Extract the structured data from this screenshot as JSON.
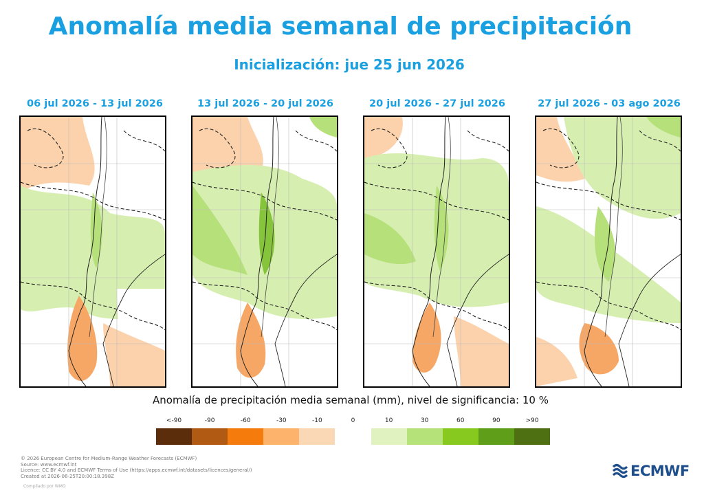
{
  "title": "Anomalía media semanal de precipitación",
  "subtitle": "Inicialización: jue 25 jun 2026",
  "panels": [
    {
      "period": "06 jul 2026 - 13 jul 2026"
    },
    {
      "period": "13 jul 2026 - 20 jul 2026"
    },
    {
      "period": "20 jul 2026 - 27 jul 2026"
    },
    {
      "period": "27 jul 2026 - 03 ago 2026"
    }
  ],
  "legend": {
    "title": "Anomalía de precipitación media semanal (mm), nivel de significancia: 10 %",
    "ticks": [
      "<-90",
      "-90",
      "-60",
      "-30",
      "-10",
      "0",
      "10",
      "30",
      "60",
      "90",
      ">90"
    ],
    "colors": [
      "#5c2d0b",
      "#b05a14",
      "#f57c0c",
      "#fdb36b",
      "#fbd8b5",
      "#ffffff",
      "#dff2bf",
      "#b5e37a",
      "#88c91f",
      "#5f9e18",
      "#4e6f12"
    ]
  },
  "colors": {
    "accent": "#1aa0e0",
    "dry_light": "#fbd2ab",
    "dry_medium": "#f6a766",
    "wet_light": "#d6efb0",
    "wet_medium": "#b6e07a",
    "wet_strong": "#86c43c"
  },
  "footer": [
    "© 2026 European Centre for Medium-Range Weather Forecasts (ECMWF)",
    "Source: www.ecmwf.int",
    "Licence: CC BY 4.0 and ECMWF Terms of Use (https://apps.ecmwf.int/datasets/licences/general/)",
    "Created at 2026-06-25T20:00:18.398Z"
  ],
  "footer_note": "Compilado por WMO",
  "logo": {
    "text": "ECMWF",
    "icon": "ecmwf-wave-icon"
  }
}
